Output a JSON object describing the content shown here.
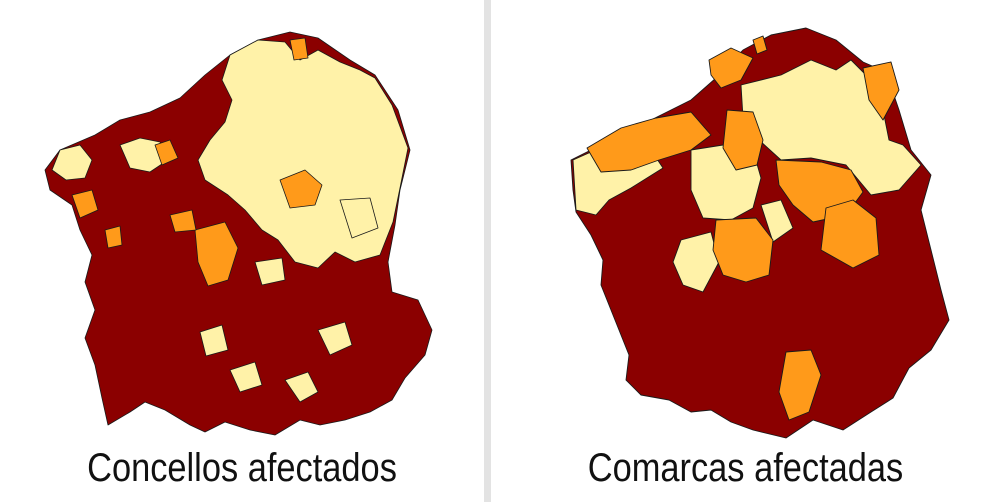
{
  "colors": {
    "high": "#8b0000",
    "medium": "#ff9a1a",
    "low": "#fff2a8",
    "border": "#1a1a1a"
  },
  "maps": [
    {
      "caption": "Concellos afectados"
    },
    {
      "caption": "Comarcas afectadas"
    }
  ]
}
